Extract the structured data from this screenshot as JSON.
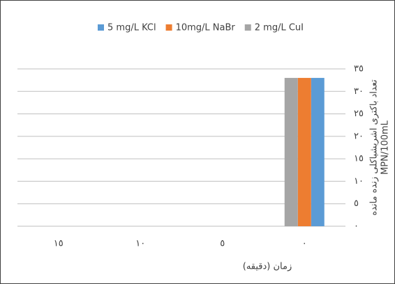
{
  "chart_data": {
    "type": "bar",
    "categories": [
      "٠",
      "٥",
      "١٠",
      "١٥"
    ],
    "x_direction": "rtl",
    "series": [
      {
        "name": "5 mg/L KCl",
        "color": "#5b9bd5",
        "values": [
          33,
          0,
          0,
          0
        ]
      },
      {
        "name": "10mg/L NaBr",
        "color": "#ed7d31",
        "values": [
          33,
          0,
          0,
          0
        ]
      },
      {
        "name": "2 mg/L CuI",
        "color": "#a5a5a5",
        "values": [
          33,
          0,
          0,
          0
        ]
      }
    ],
    "ylim": [
      0,
      35
    ],
    "yticks": [
      {
        "value": 0,
        "label": "٠"
      },
      {
        "value": 5,
        "label": "٥"
      },
      {
        "value": 10,
        "label": "١٠"
      },
      {
        "value": 15,
        "label": "١٥"
      },
      {
        "value": 20,
        "label": "٢٠"
      },
      {
        "value": 25,
        "label": "٢٥"
      },
      {
        "value": 30,
        "label": "٣٠"
      },
      {
        "value": 35,
        "label": "٣٥"
      }
    ],
    "y_axis_side": "right",
    "y_label": [
      "تعداد باکتری اشریشیاکلی زنده مانده",
      "MPN/100mL"
    ],
    "x_label": "زمان (دقیقه)",
    "grid": true,
    "legend": "top"
  }
}
